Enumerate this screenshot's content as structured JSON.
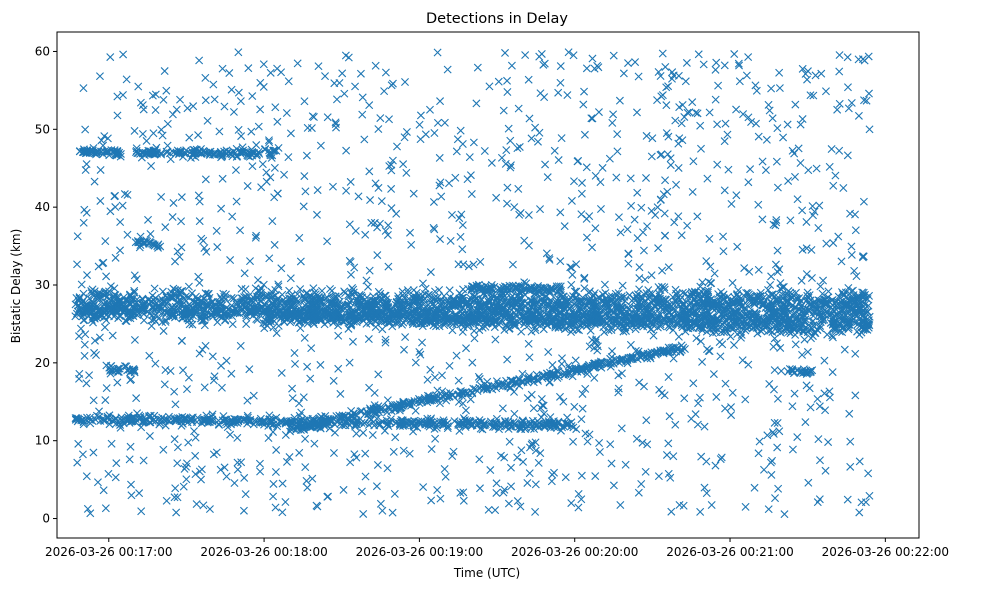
{
  "chart_data": {
    "type": "scatter",
    "title": "Detections in Delay",
    "xlabel": "Time (UTC)",
    "ylabel": "Bistatic Delay (km)",
    "marker": "x",
    "color": "#1f77b4",
    "grid": false,
    "legend": false,
    "x_unit": "seconds after 2026-03-26 00:17:00 UTC",
    "xlim": [
      -20,
      313
    ],
    "ylim": [
      -2.5,
      62.5
    ],
    "x_ticks": [
      {
        "value": 0,
        "label": "2026-03-26 00:17:00"
      },
      {
        "value": 60,
        "label": "2026-03-26 00:18:00"
      },
      {
        "value": 120,
        "label": "2026-03-26 00:19:00"
      },
      {
        "value": 180,
        "label": "2026-03-26 00:20:00"
      },
      {
        "value": 240,
        "label": "2026-03-26 00:21:00"
      },
      {
        "value": 300,
        "label": "2026-03-26 00:22:00"
      }
    ],
    "y_ticks": [
      {
        "value": 0,
        "label": "0"
      },
      {
        "value": 10,
        "label": "10"
      },
      {
        "value": 20,
        "label": "20"
      },
      {
        "value": 30,
        "label": "30"
      },
      {
        "value": 40,
        "label": "40"
      },
      {
        "value": 50,
        "label": "50"
      },
      {
        "value": 60,
        "label": "60"
      }
    ],
    "tracks": [
      {
        "name": "band-28km",
        "x_start": -13,
        "x_end": 294,
        "y_start": 28.0,
        "y_end": 27.8,
        "noise": 0.8
      },
      {
        "name": "band-27km",
        "x_start": -13,
        "x_end": 294,
        "y_start": 27.0,
        "y_end": 27.5,
        "noise": 0.9
      },
      {
        "name": "band-26km",
        "x_start": -13,
        "x_end": 294,
        "y_start": 26.5,
        "y_end": 25.5,
        "noise": 0.6
      },
      {
        "name": "band-25km",
        "x_start": 60,
        "x_end": 294,
        "y_start": 26.0,
        "y_end": 24.5,
        "noise": 0.6
      },
      {
        "name": "rising-track",
        "x_start": 70,
        "x_end": 222,
        "y_start": 11.5,
        "y_end": 22.0,
        "noise": 0.25
      },
      {
        "name": "flat-12km",
        "x_start": -13,
        "x_end": 180,
        "y_start": 12.8,
        "y_end": 12.0,
        "noise": 0.3
      },
      {
        "name": "track-47km",
        "x_start": -13,
        "x_end": 5,
        "y_start": 47.2,
        "y_end": 47.0,
        "noise": 0.2
      },
      {
        "name": "track-47km-b",
        "x_start": 10,
        "x_end": 65,
        "y_start": 47.0,
        "y_end": 47.0,
        "noise": 0.3
      },
      {
        "name": "track-19km",
        "x_start": 0,
        "x_end": 10,
        "y_start": 19.2,
        "y_end": 19.0,
        "noise": 0.2
      },
      {
        "name": "track-19km-b",
        "x_start": 262,
        "x_end": 272,
        "y_start": 19.0,
        "y_end": 18.8,
        "noise": 0.2
      },
      {
        "name": "track-30km",
        "x_start": 140,
        "x_end": 175,
        "y_start": 29.6,
        "y_end": 29.3,
        "noise": 0.3
      },
      {
        "name": "track-35km",
        "x_start": 10,
        "x_end": 20,
        "y_start": 35.4,
        "y_end": 35.2,
        "noise": 0.3
      }
    ],
    "clutter": {
      "x_range": [
        -13,
        294
      ],
      "y_range": [
        0.5,
        60
      ],
      "approx_count": 1300
    }
  }
}
